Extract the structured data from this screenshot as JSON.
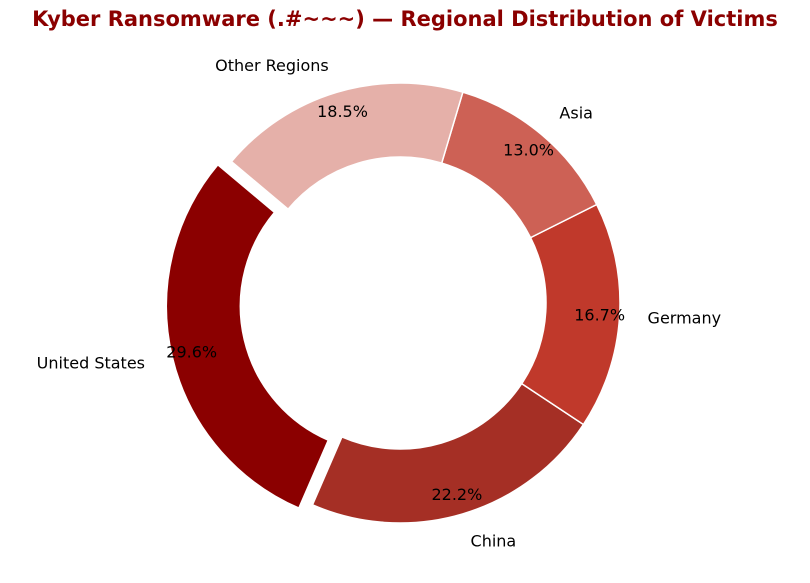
{
  "chart_data": {
    "type": "pie",
    "style": "donut",
    "title": "Kyber Ransomware (.#~~~) — Regional Distribution of Victims",
    "title_color": "#8b0000",
    "categories": [
      "United States",
      "China",
      "Germany",
      "Asia",
      "Other Regions"
    ],
    "values": [
      29.6,
      22.2,
      16.7,
      13.0,
      18.5
    ],
    "percent_labels": [
      "29.6%",
      "22.2%",
      "16.7%",
      "13.0%",
      "18.5%"
    ],
    "colors": [
      "#8b0000",
      "#a52f25",
      "#c0392b",
      "#cd6155",
      "#e5b0a9"
    ],
    "exploded": [
      "United States"
    ],
    "legend": "none"
  }
}
